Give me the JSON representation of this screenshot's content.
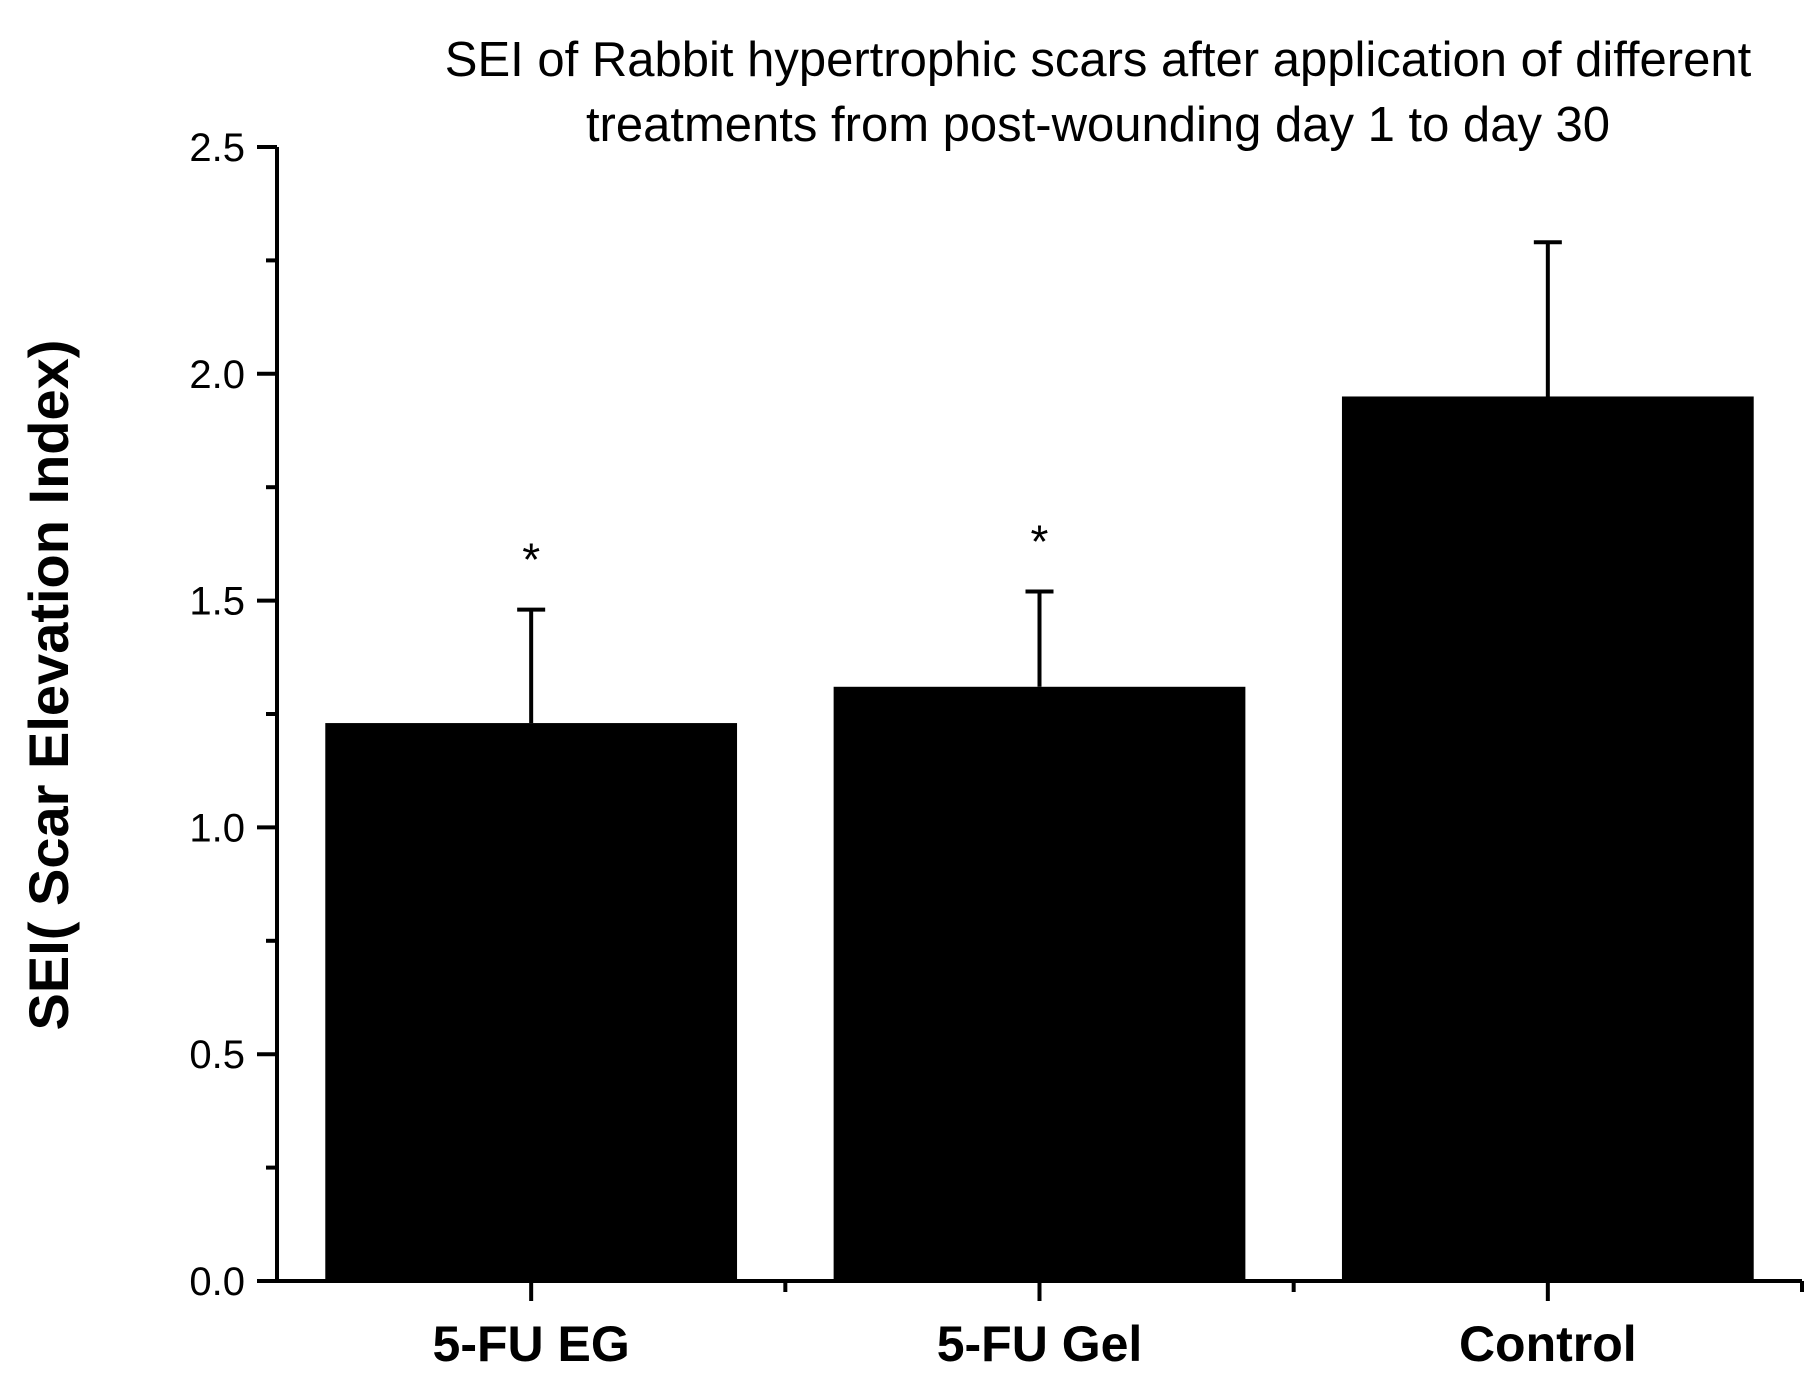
{
  "chart_data": {
    "type": "bar",
    "title_lines": [
      "SEI of Rabbit hypertrophic scars after application of different",
      "treatments from post-wounding day  1 to day 30"
    ],
    "xlabel": "",
    "ylabel": "SEI( Scar Elevation Index)",
    "categories": [
      "5-FU EG",
      "5-FU Gel",
      "Control"
    ],
    "values": [
      1.23,
      1.31,
      1.95
    ],
    "error_upper": [
      1.48,
      1.52,
      2.29
    ],
    "annotations": [
      "*",
      "*",
      ""
    ],
    "ylim": [
      0,
      2.5
    ],
    "yticks": [
      "0.0",
      "0.5",
      "1.0",
      "1.5",
      "2.0",
      "2.5"
    ],
    "ytick_values": [
      0,
      0.5,
      1.0,
      1.5,
      2.0,
      2.5
    ],
    "grid": false,
    "bar_color": "#000000"
  }
}
